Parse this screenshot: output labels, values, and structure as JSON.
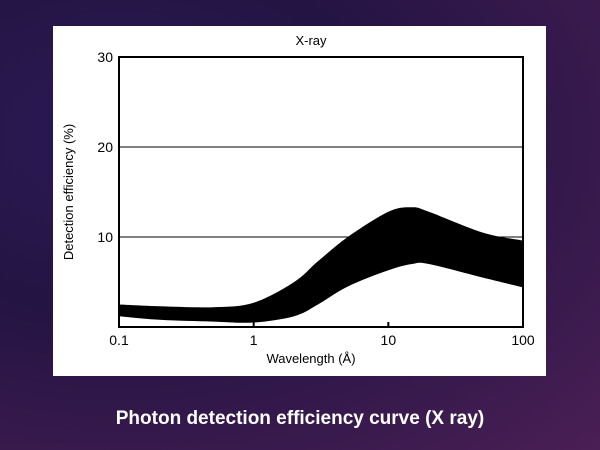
{
  "caption": "Photon detection efficiency curve  (X ray)",
  "chart_data": {
    "type": "area",
    "title": "X-ray",
    "xlabel": "Wavelength (Å)",
    "ylabel": "Detection efficiency (%)",
    "xscale": "log",
    "xlim": [
      0.1,
      100
    ],
    "ylim": [
      0,
      30
    ],
    "xticks": [
      "0.1",
      "1",
      "10",
      "100"
    ],
    "xtick_values": [
      0.1,
      1,
      10,
      100
    ],
    "yticks": [
      "10",
      "20",
      "30"
    ],
    "ytick_values": [
      10,
      20,
      30
    ],
    "grid": "horizontal",
    "series": [
      {
        "name": "upper",
        "x": [
          0.1,
          0.2,
          0.5,
          1,
          2,
          3,
          5,
          10,
          15,
          20,
          50,
          100
        ],
        "values": [
          2.5,
          2.3,
          2.2,
          2.7,
          5,
          7.3,
          10,
          12.8,
          13.3,
          12.8,
          10.5,
          9.6
        ]
      },
      {
        "name": "lower",
        "x": [
          0.1,
          0.2,
          0.5,
          1,
          2,
          3,
          5,
          10,
          15,
          20,
          50,
          100
        ],
        "values": [
          1.2,
          0.8,
          0.6,
          0.5,
          1.2,
          2.5,
          4.5,
          6.3,
          7,
          7,
          5.5,
          4.4
        ]
      }
    ],
    "fill_color": "#000000"
  }
}
